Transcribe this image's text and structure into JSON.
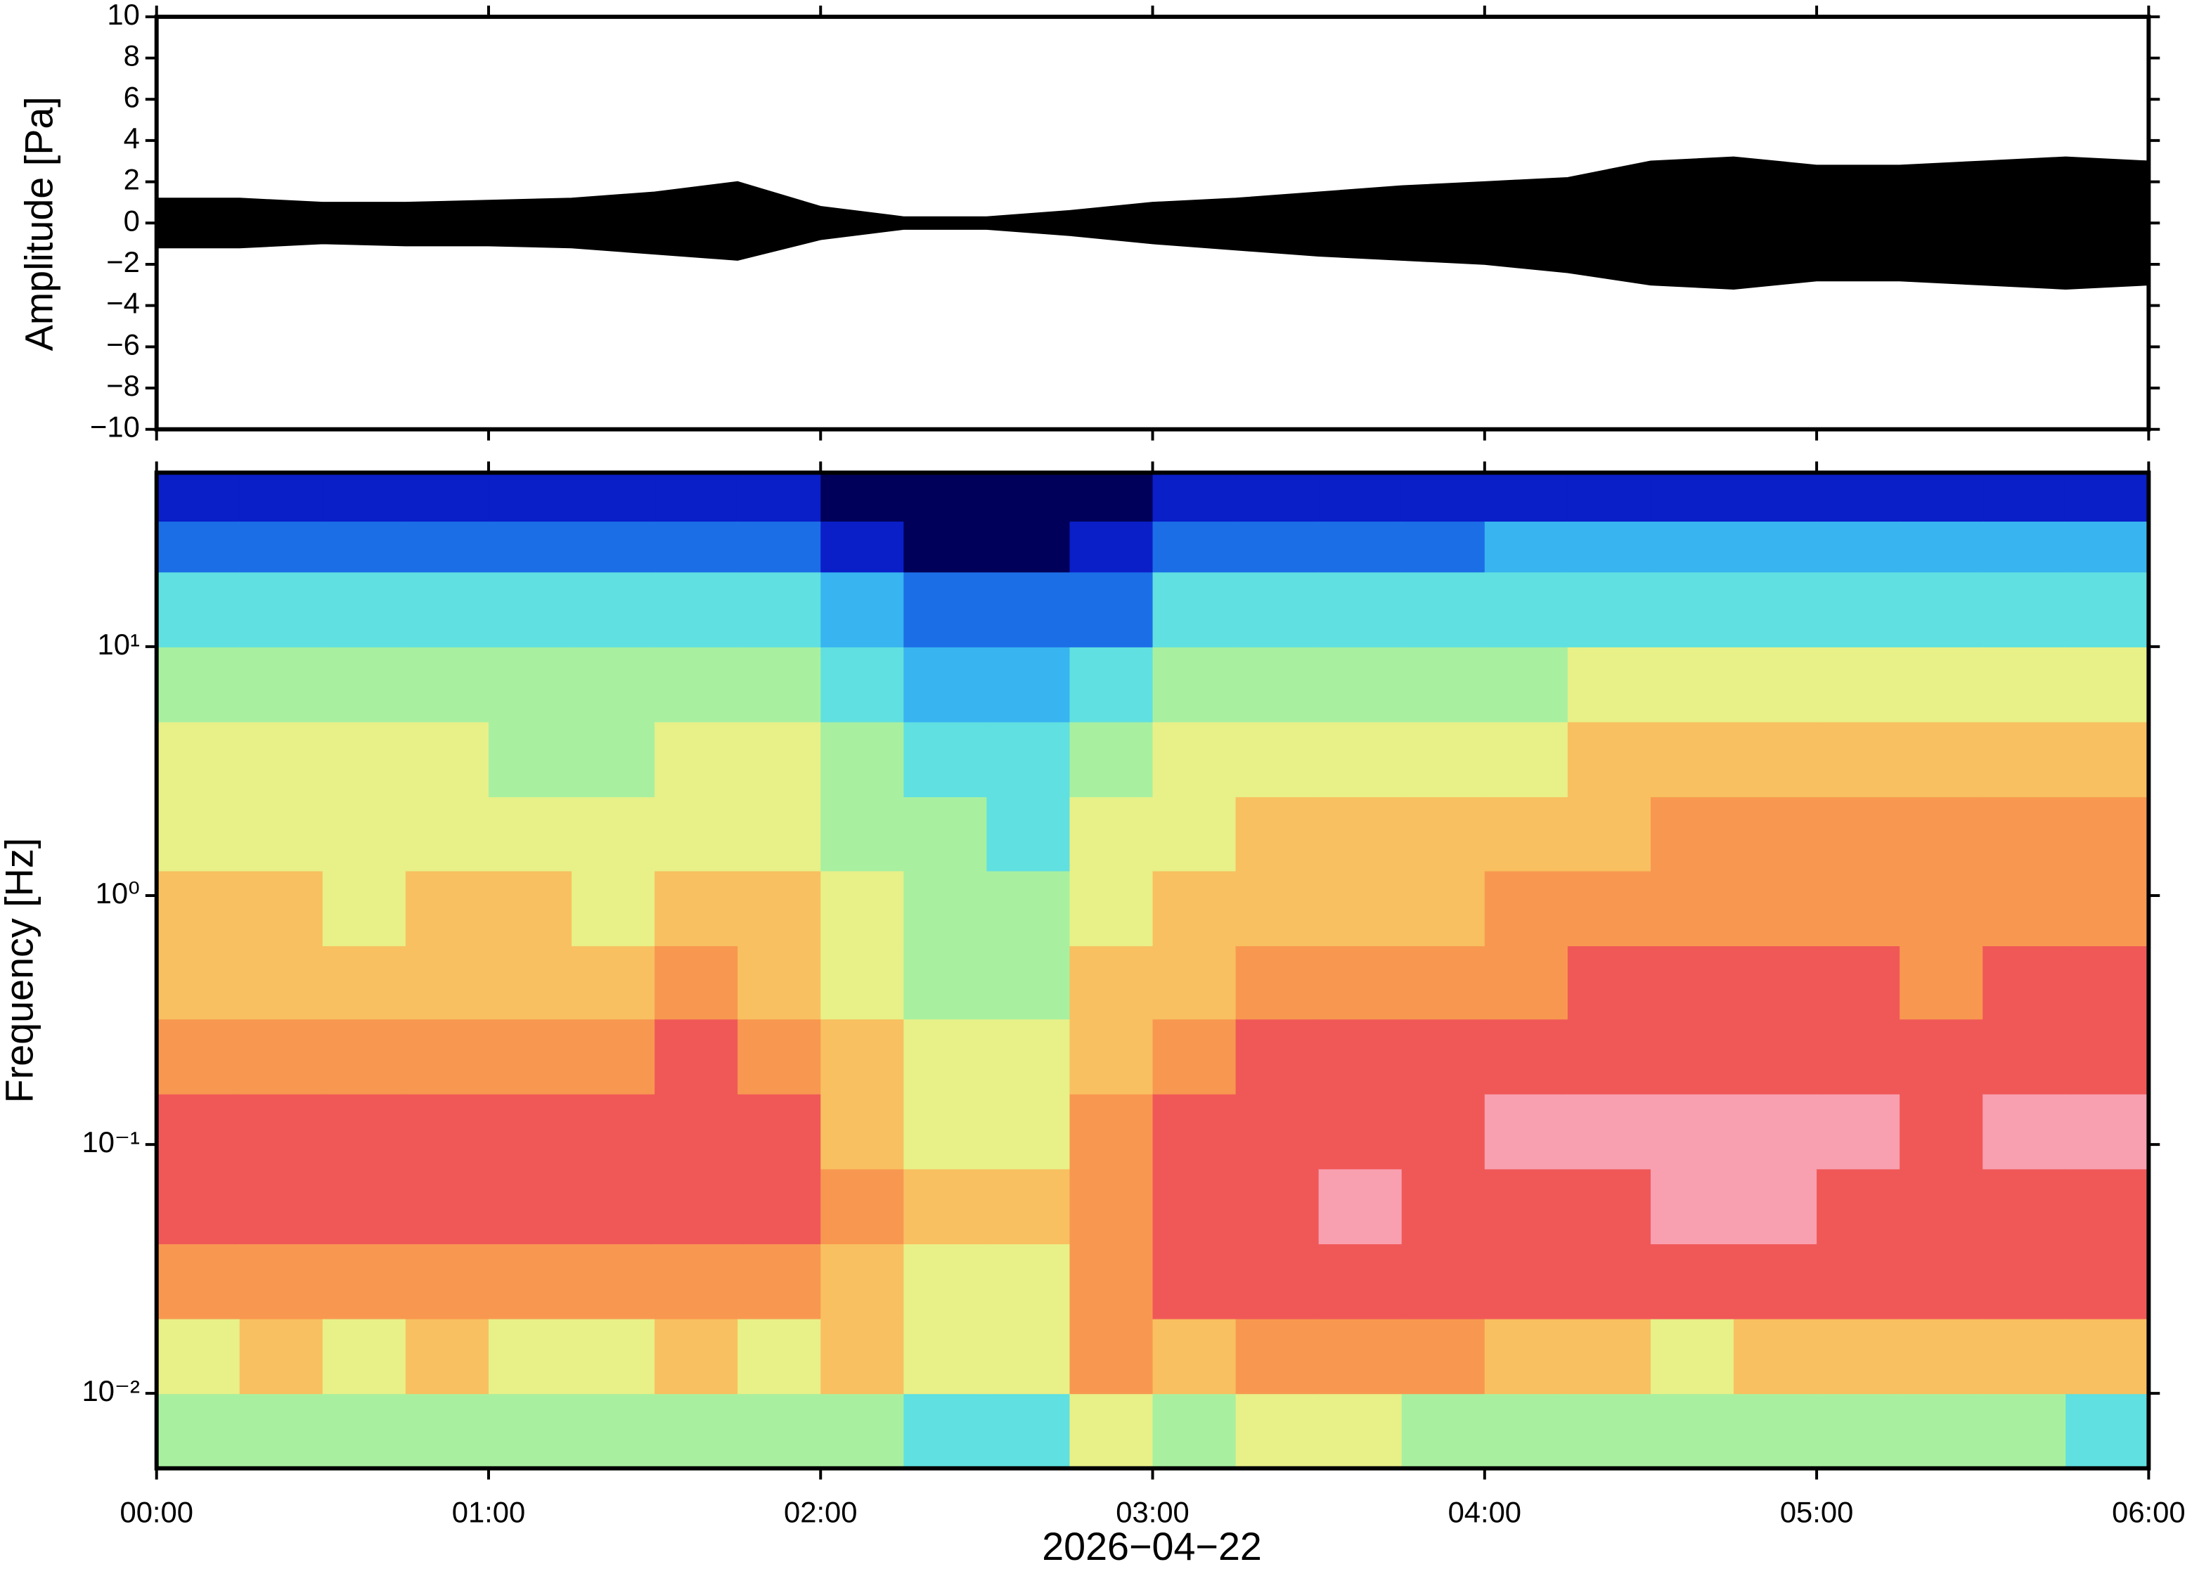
{
  "chart_data": [
    {
      "type": "area",
      "ylabel": "Amplitude [Pa]",
      "color": "#000000",
      "xlim": [
        0,
        6
      ],
      "xticks": [
        0,
        1,
        2,
        3,
        4,
        5,
        6
      ],
      "ylim": [
        -10,
        10
      ],
      "yticks": [
        {
          "value": -10,
          "label": "−10"
        },
        {
          "value": -8,
          "label": "−8"
        },
        {
          "value": -6,
          "label": "−6"
        },
        {
          "value": -4,
          "label": "−4"
        },
        {
          "value": -2,
          "label": "−2"
        },
        0,
        2,
        4,
        6,
        8,
        10
      ],
      "x": [
        0,
        0.25,
        0.5,
        0.75,
        1,
        1.25,
        1.5,
        1.75,
        2,
        2.25,
        2.5,
        2.75,
        3,
        3.25,
        3.5,
        3.75,
        4,
        4.25,
        4.5,
        4.75,
        5,
        5.25,
        5.5,
        5.75,
        6
      ],
      "series": [
        {
          "values": [
            1.2,
            1.2,
            1.0,
            1.0,
            1.1,
            1.2,
            1.5,
            2.0,
            0.8,
            0.3,
            0.3,
            0.6,
            1.0,
            1.2,
            1.5,
            1.8,
            2.0,
            2.2,
            3.0,
            3.2,
            2.8,
            2.8,
            3.0,
            3.2,
            3.0
          ]
        },
        {
          "values": [
            -1.2,
            -1.2,
            -1.0,
            -1.1,
            -1.1,
            -1.2,
            -1.5,
            -1.8,
            -0.8,
            -0.3,
            -0.3,
            -0.6,
            -1.0,
            -1.3,
            -1.6,
            -1.8,
            -2.0,
            -2.4,
            -3.0,
            -3.2,
            -2.8,
            -2.8,
            -3.0,
            -3.2,
            -3.0
          ]
        }
      ]
    },
    {
      "type": "heatmap",
      "ylabel": "Frequency [Hz]",
      "xlabel": "2026−04−22",
      "ylog": true,
      "xlim": [
        0,
        6
      ],
      "xticks": [
        {
          "value": 0,
          "label": "00:00"
        },
        {
          "value": 1,
          "label": "01:00"
        },
        {
          "value": 2,
          "label": "02:00"
        },
        {
          "value": 3,
          "label": "03:00"
        },
        {
          "value": 4,
          "label": "04:00"
        },
        {
          "value": 5,
          "label": "05:00"
        },
        {
          "value": 6,
          "label": "06:00"
        }
      ],
      "ylim": [
        0.005,
        50
      ],
      "yticks": [
        {
          "value": 0.01,
          "label": "10⁻²"
        },
        {
          "value": 0.1,
          "label": "10⁻¹"
        },
        {
          "value": 1,
          "label": "10⁰"
        },
        {
          "value": 10,
          "label": "10¹"
        }
      ],
      "zlim": [
        0,
        10
      ],
      "colormap": [
        "#00005a",
        "#0a1fc8",
        "#1c6ee6",
        "#38b4f0",
        "#60e0e0",
        "#a8f0a0",
        "#e8f088",
        "#f8c060",
        "#f89850",
        "#f05858",
        "#f8a0b0"
      ],
      "time_edges": [
        0,
        0.25,
        0.5,
        0.75,
        1,
        1.25,
        1.5,
        1.75,
        2,
        2.25,
        2.5,
        2.75,
        3,
        3.25,
        3.5,
        3.75,
        4,
        4.25,
        4.5,
        4.75,
        5,
        5.25,
        5.5,
        5.75,
        6
      ],
      "freq_edges": [
        0.005,
        0.01,
        0.02,
        0.04,
        0.08,
        0.16,
        0.32,
        0.63,
        1.26,
        2.5,
        5,
        10,
        20,
        32,
        50
      ],
      "z": [
        [
          5,
          6,
          8,
          9,
          9,
          8,
          7,
          7,
          6,
          6,
          5,
          4,
          2,
          1
        ],
        [
          5,
          7,
          8,
          9,
          9,
          8,
          7,
          7,
          6,
          6,
          5,
          4,
          2,
          1
        ],
        [
          5,
          6,
          8,
          9,
          9,
          8,
          7,
          6,
          6,
          6,
          5,
          4,
          2,
          1
        ],
        [
          5,
          7,
          8,
          9,
          9,
          8,
          7,
          7,
          6,
          6,
          5,
          4,
          2,
          1
        ],
        [
          5,
          6,
          8,
          9,
          9,
          8,
          7,
          7,
          6,
          5,
          5,
          4,
          2,
          1
        ],
        [
          5,
          6,
          8,
          9,
          9,
          8,
          7,
          6,
          6,
          5,
          5,
          4,
          2,
          1
        ],
        [
          5,
          7,
          8,
          9,
          9,
          9,
          8,
          7,
          6,
          6,
          5,
          4,
          2,
          1
        ],
        [
          5,
          6,
          8,
          9,
          9,
          8,
          7,
          7,
          6,
          6,
          5,
          4,
          2,
          1
        ],
        [
          5,
          7,
          7,
          8,
          7,
          7,
          6,
          6,
          5,
          5,
          4,
          3,
          1,
          0
        ],
        [
          4,
          6,
          6,
          7,
          6,
          6,
          5,
          5,
          5,
          4,
          3,
          2,
          0,
          0
        ],
        [
          4,
          6,
          6,
          7,
          6,
          6,
          5,
          5,
          4,
          4,
          3,
          2,
          0,
          0
        ],
        [
          6,
          8,
          8,
          8,
          8,
          7,
          7,
          6,
          6,
          5,
          4,
          2,
          1,
          0
        ],
        [
          5,
          7,
          9,
          9,
          9,
          8,
          7,
          7,
          6,
          6,
          5,
          4,
          2,
          1
        ],
        [
          6,
          8,
          9,
          9,
          9,
          9,
          8,
          7,
          7,
          6,
          5,
          4,
          2,
          1
        ],
        [
          6,
          8,
          9,
          10,
          9,
          9,
          8,
          7,
          7,
          6,
          5,
          4,
          2,
          1
        ],
        [
          5,
          8,
          9,
          9,
          9,
          9,
          8,
          7,
          7,
          6,
          5,
          4,
          2,
          1
        ],
        [
          5,
          7,
          9,
          9,
          10,
          9,
          8,
          8,
          7,
          6,
          5,
          4,
          3,
          1
        ],
        [
          5,
          7,
          9,
          9,
          10,
          9,
          9,
          8,
          7,
          7,
          6,
          4,
          3,
          1
        ],
        [
          5,
          6,
          9,
          10,
          10,
          9,
          9,
          8,
          8,
          7,
          6,
          4,
          3,
          1
        ],
        [
          5,
          7,
          9,
          10,
          10,
          9,
          9,
          8,
          8,
          7,
          6,
          4,
          3,
          1
        ],
        [
          5,
          7,
          9,
          9,
          10,
          9,
          9,
          8,
          8,
          7,
          6,
          4,
          3,
          1
        ],
        [
          5,
          7,
          9,
          9,
          9,
          9,
          8,
          8,
          8,
          7,
          6,
          4,
          3,
          1
        ],
        [
          5,
          7,
          9,
          9,
          10,
          9,
          9,
          8,
          8,
          7,
          6,
          4,
          3,
          1
        ],
        [
          4,
          7,
          9,
          9,
          10,
          9,
          9,
          8,
          8,
          7,
          6,
          4,
          3,
          1
        ]
      ]
    }
  ]
}
